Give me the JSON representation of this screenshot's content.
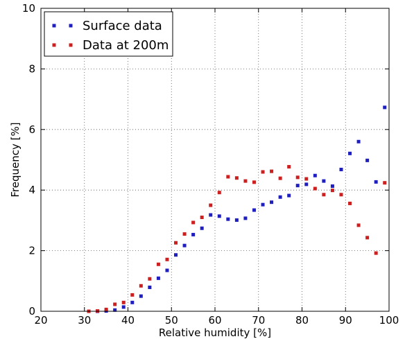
{
  "chart_data": {
    "type": "scatter",
    "title": "",
    "xlabel": "Relative humidity [%]",
    "ylabel": "Frequency [%]",
    "xlim": [
      20,
      100
    ],
    "ylim": [
      0,
      10
    ],
    "xticks": [
      20,
      30,
      40,
      50,
      60,
      70,
      80,
      90,
      100
    ],
    "yticks": [
      0,
      2,
      4,
      6,
      8,
      10
    ],
    "grid": true,
    "legend_position": "top-left",
    "series": [
      {
        "name": "Surface data",
        "color": "#1f1fbf",
        "x": [
          31,
          33,
          35,
          37,
          39,
          41,
          43,
          45,
          47,
          49,
          51,
          53,
          55,
          57,
          59,
          61,
          63,
          65,
          67,
          69,
          71,
          73,
          75,
          77,
          79,
          81,
          83,
          85,
          87,
          89,
          91,
          93,
          95,
          97,
          99
        ],
        "y": [
          0.0,
          0.0,
          0.01,
          0.04,
          0.14,
          0.29,
          0.5,
          0.79,
          1.09,
          1.35,
          1.86,
          2.17,
          2.53,
          2.74,
          3.18,
          3.14,
          3.04,
          3.01,
          3.07,
          3.34,
          3.52,
          3.6,
          3.77,
          3.82,
          4.15,
          4.19,
          4.48,
          4.3,
          4.13,
          4.68,
          5.21,
          5.6,
          4.98,
          4.27,
          6.73
        ]
      },
      {
        "name": "Data at 200m",
        "color": "#cc1f1f",
        "x": [
          31,
          33,
          35,
          37,
          39,
          41,
          43,
          45,
          47,
          49,
          51,
          53,
          55,
          57,
          59,
          61,
          63,
          65,
          67,
          69,
          71,
          73,
          75,
          77,
          79,
          81,
          83,
          85,
          87,
          89,
          91,
          93,
          95,
          97,
          99
        ],
        "y": [
          0.0,
          0.01,
          0.06,
          0.23,
          0.29,
          0.54,
          0.84,
          1.07,
          1.55,
          1.71,
          2.26,
          2.55,
          2.93,
          3.1,
          3.5,
          3.92,
          4.44,
          4.4,
          4.3,
          4.26,
          4.6,
          4.62,
          4.39,
          4.77,
          4.42,
          4.37,
          4.05,
          3.85,
          3.99,
          3.85,
          3.56,
          2.84,
          2.43,
          1.92,
          4.24
        ]
      }
    ]
  }
}
